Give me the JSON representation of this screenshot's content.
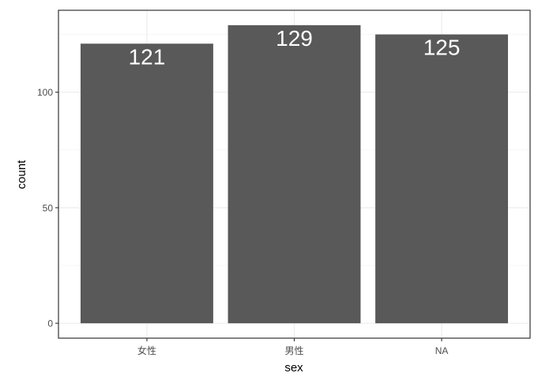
{
  "chart_data": {
    "type": "bar",
    "categories": [
      "女性",
      "男性",
      "NA"
    ],
    "values": [
      121,
      129,
      125
    ],
    "data_labels": [
      "121",
      "129",
      "125"
    ],
    "xlabel": "sex",
    "ylabel": "count",
    "ylim": [
      -6.45,
      135.45
    ],
    "yticks": [
      0,
      50,
      100
    ],
    "ytick_labels": [
      "0",
      "50",
      "100"
    ],
    "grid": true,
    "bar_color": "#595959",
    "label_color": "#ffffff",
    "theme": "bw"
  }
}
